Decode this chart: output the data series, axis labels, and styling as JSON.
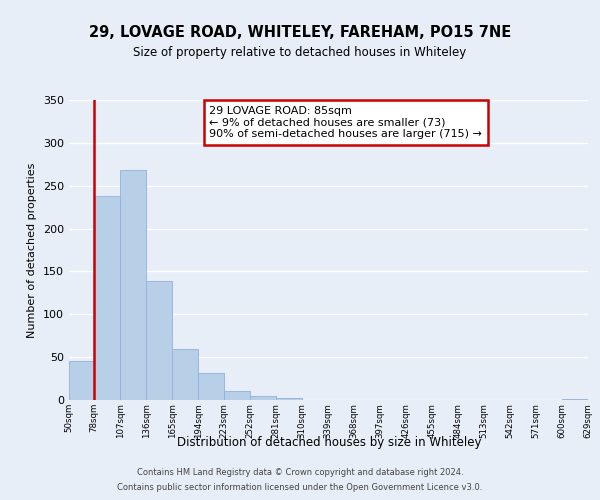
{
  "title": "29, LOVAGE ROAD, WHITELEY, FAREHAM, PO15 7NE",
  "subtitle": "Size of property relative to detached houses in Whiteley",
  "xlabel": "Distribution of detached houses by size in Whiteley",
  "ylabel": "Number of detached properties",
  "bar_edges": [
    50,
    78,
    107,
    136,
    165,
    194,
    223,
    252,
    281,
    310,
    339,
    368,
    397,
    426,
    455,
    484,
    513,
    542,
    571,
    600,
    629
  ],
  "bar_heights": [
    46,
    238,
    268,
    139,
    59,
    32,
    11,
    5,
    2,
    0,
    0,
    0,
    0,
    0,
    0,
    0,
    0,
    0,
    0,
    1
  ],
  "bar_color": "#b8cfe8",
  "bar_edge_color": "#92afe0",
  "highlight_color": "#cc0000",
  "vline_x": 78,
  "ylim": [
    0,
    350
  ],
  "yticks": [
    0,
    50,
    100,
    150,
    200,
    250,
    300,
    350
  ],
  "annotation_box_text": "29 LOVAGE ROAD: 85sqm\n← 9% of detached houses are smaller (73)\n90% of semi-detached houses are larger (715) →",
  "footer_line1": "Contains HM Land Registry data © Crown copyright and database right 2024.",
  "footer_line2": "Contains public sector information licensed under the Open Government Licence v3.0.",
  "bg_color": "#e8eef7",
  "plot_bg_color": "#e8eef7",
  "grid_color": "#ffffff",
  "tick_labels": [
    "50sqm",
    "78sqm",
    "107sqm",
    "136sqm",
    "165sqm",
    "194sqm",
    "223sqm",
    "252sqm",
    "281sqm",
    "310sqm",
    "339sqm",
    "368sqm",
    "397sqm",
    "426sqm",
    "455sqm",
    "484sqm",
    "513sqm",
    "542sqm",
    "571sqm",
    "600sqm",
    "629sqm"
  ]
}
